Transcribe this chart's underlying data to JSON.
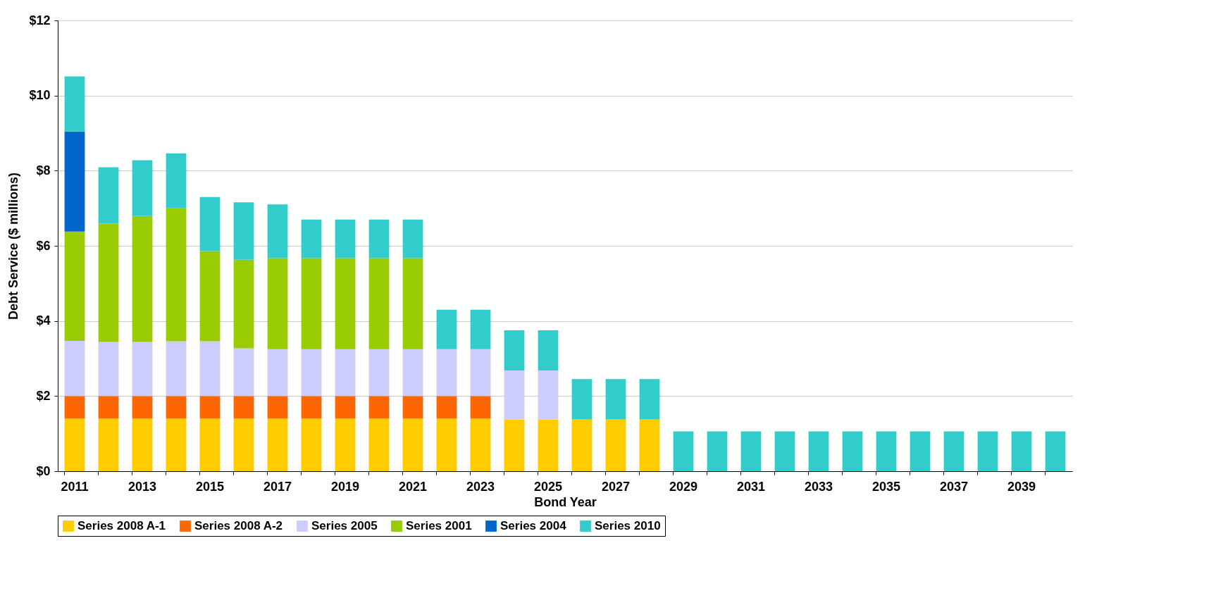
{
  "chart_data": {
    "type": "bar",
    "stacked": true,
    "xlabel": "Bond Year",
    "ylabel": "Debt Service ($ millions)",
    "categories": [
      "2011",
      null,
      "2013",
      null,
      "2015",
      null,
      "2017",
      null,
      "2019",
      null,
      "2021",
      null,
      "2023",
      null,
      "2025",
      null,
      "2027",
      null,
      "2029",
      null,
      "2031",
      null,
      "2033",
      null,
      "2035",
      null,
      "2037",
      null,
      "2039",
      null
    ],
    "series": [
      {
        "name": "Series 2008 A-1",
        "color": "#ffcc00",
        "values": [
          1.4,
          1.4,
          1.4,
          1.4,
          1.4,
          1.4,
          1.4,
          1.4,
          1.4,
          1.4,
          1.4,
          1.4,
          1.4,
          1.38,
          1.38,
          1.38,
          1.38,
          1.38,
          null,
          null,
          null,
          null,
          null,
          null,
          null,
          null,
          null,
          null,
          null,
          null
        ]
      },
      {
        "name": "Series 2008 A-2",
        "color": "#ff6600",
        "values": [
          0.6,
          0.6,
          0.6,
          0.6,
          0.6,
          0.6,
          0.6,
          0.6,
          0.6,
          0.6,
          0.6,
          0.6,
          0.6,
          null,
          null,
          null,
          null,
          null,
          null,
          null,
          null,
          null,
          null,
          null,
          null,
          null,
          null,
          null,
          null,
          null
        ]
      },
      {
        "name": "Series 2005",
        "color": "#ccccff",
        "values": [
          1.47,
          1.44,
          1.44,
          1.46,
          1.46,
          1.27,
          1.25,
          1.25,
          1.25,
          1.25,
          1.25,
          1.25,
          1.25,
          1.3,
          1.3,
          null,
          null,
          null,
          null,
          null,
          null,
          null,
          null,
          null,
          null,
          null,
          null,
          null,
          null,
          null
        ]
      },
      {
        "name": "Series 2001",
        "color": "#99cc00",
        "values": [
          2.91,
          3.15,
          3.35,
          3.54,
          2.4,
          2.36,
          2.42,
          2.42,
          2.42,
          2.42,
          2.42,
          null,
          null,
          null,
          null,
          null,
          null,
          null,
          null,
          null,
          null,
          null,
          null,
          null,
          null,
          null,
          null,
          null,
          null,
          null
        ]
      },
      {
        "name": "Series 2004",
        "color": "#0066cc",
        "values": [
          2.66,
          null,
          null,
          null,
          null,
          null,
          null,
          null,
          null,
          null,
          null,
          null,
          null,
          null,
          null,
          null,
          null,
          null,
          null,
          null,
          null,
          null,
          null,
          null,
          null,
          null,
          null,
          null,
          null,
          null
        ]
      },
      {
        "name": "Series 2010",
        "color": "#33cccc",
        "values": [
          1.47,
          1.5,
          1.49,
          1.46,
          1.44,
          1.53,
          1.43,
          1.03,
          1.03,
          1.03,
          1.03,
          1.05,
          1.05,
          1.07,
          1.07,
          1.07,
          1.07,
          1.07,
          1.06,
          1.06,
          1.06,
          1.06,
          1.06,
          1.06,
          1.06,
          1.06,
          1.06,
          1.06,
          1.06,
          1.06
        ]
      }
    ],
    "ylim": [
      0,
      12
    ],
    "yticks": [
      {
        "value": 0,
        "label": "$0"
      },
      {
        "value": 2,
        "label": "$2"
      },
      {
        "value": 4,
        "label": "$4"
      },
      {
        "value": 6,
        "label": "$6"
      },
      {
        "value": 8,
        "label": "$8"
      },
      {
        "value": 10,
        "label": "$10"
      },
      {
        "value": 12,
        "label": "$12"
      }
    ],
    "grid": "y",
    "legend": "bottom"
  }
}
